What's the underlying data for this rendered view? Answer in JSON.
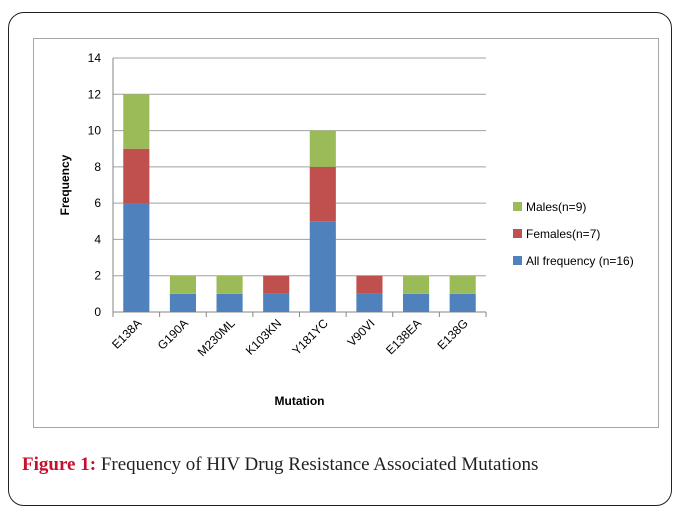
{
  "chart_data": {
    "type": "bar",
    "stacked": true,
    "categories": [
      "E138A",
      "G190A",
      "M230ML",
      "K103KN",
      "Y181YC",
      "V90VI",
      "E138EA",
      "E138G"
    ],
    "series": [
      {
        "name": "All frequency  (n=16)",
        "color": "#4f81bd",
        "values": [
          6,
          1,
          1,
          1,
          5,
          1,
          1,
          1
        ]
      },
      {
        "name": "Females(n=7)",
        "color": "#c0504d",
        "values": [
          3,
          0,
          0,
          1,
          3,
          1,
          0,
          0
        ]
      },
      {
        "name": "Males(n=9)",
        "color": "#9bbb59",
        "values": [
          3,
          1,
          1,
          0,
          2,
          0,
          1,
          1
        ]
      }
    ],
    "xlabel": "Mutation",
    "ylabel": "Frequency",
    "ylim": [
      0,
      14
    ],
    "yticks": [
      0,
      2,
      4,
      6,
      8,
      10,
      12,
      14
    ],
    "grid": true,
    "legend_position": "right"
  },
  "caption": {
    "label": "Figure 1:",
    "text": " Frequency of HIV Drug Resistance Associated Mutations"
  }
}
